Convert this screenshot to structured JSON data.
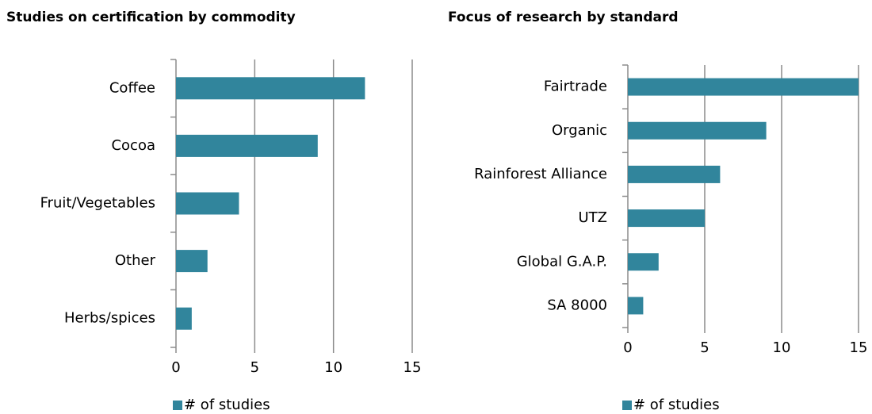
{
  "chart_data": [
    {
      "type": "barh",
      "title": "Studies on certification  by commodity",
      "categories": [
        "Coffee",
        "Cocoa",
        "Fruit/Vegetables",
        "Other",
        "Herbs/spices"
      ],
      "series": [
        {
          "name": "# of studies",
          "color": "#31859c",
          "values": [
            12,
            9,
            4,
            2,
            1
          ]
        }
      ],
      "xlim": [
        0,
        15
      ],
      "xticks": [
        0,
        5,
        10,
        15
      ],
      "grid": true,
      "legend": "bottom"
    },
    {
      "type": "barh",
      "title": "Focus of research by standard",
      "categories": [
        "Fairtrade",
        "Organic",
        "Rainforest Alliance",
        "UTZ",
        "Global G.A.P.",
        "SA 8000"
      ],
      "series": [
        {
          "name": "# of studies",
          "color": "#31859c",
          "values": [
            15,
            9,
            6,
            5,
            2,
            1
          ]
        }
      ],
      "xlim": [
        0,
        15
      ],
      "xticks": [
        0,
        5,
        10,
        15
      ],
      "grid": true,
      "legend": "bottom"
    }
  ]
}
